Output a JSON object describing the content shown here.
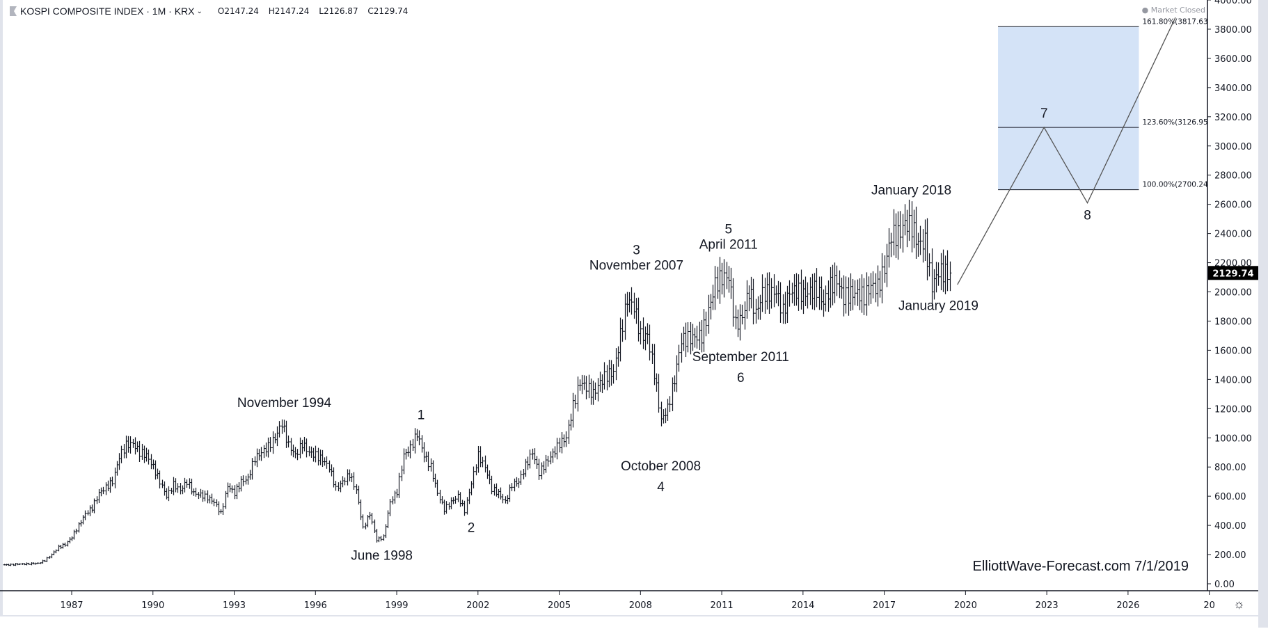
{
  "header": {
    "symbol": "KOSPI COMPOSITE INDEX · 1M · KRX",
    "open": "O2147.24",
    "high": "H2147.24",
    "low": "L2126.87",
    "close": "C2129.74"
  },
  "status": "Market Closed",
  "last_price": "2129.74",
  "watermark": "ElliottWave-Forecast.com 7/1/2019",
  "colors": {
    "bars": "#131722",
    "fib_zone": "#d4e3f7",
    "price_tag": "#000000"
  },
  "chart_data": {
    "type": "ohlc",
    "interval": "1M",
    "approx_quarterly_close": {
      "start": "1984-Q3",
      "values": [
        130,
        130,
        135,
        135,
        138,
        140,
        160,
        200,
        250,
        270,
        320,
        400,
        480,
        520,
        620,
        660,
        700,
        870,
        950,
        960,
        900,
        880,
        800,
        700,
        600,
        680,
        640,
        700,
        620,
        610,
        590,
        560,
        480,
        670,
        620,
        700,
        720,
        860,
        900,
        940,
        1000,
        1100,
        950,
        880,
        960,
        900,
        880,
        850,
        800,
        650,
        700,
        750,
        640,
        380,
        480,
        300,
        320,
        560,
        630,
        880,
        930,
        1030,
        880,
        800,
        620,
        510,
        560,
        600,
        500,
        690,
        880,
        800,
        650,
        620,
        560,
        680,
        700,
        810,
        900,
        760,
        830,
        890,
        960,
        1000,
        1220,
        1380,
        1350,
        1300,
        1380,
        1430,
        1450,
        1700,
        1950,
        1900,
        1700,
        1700,
        1450,
        1120,
        1200,
        1400,
        1670,
        1680,
        1690,
        1700,
        1870,
        2050,
        2100,
        2100,
        1770,
        1830,
        2010,
        1850,
        1990,
        1990,
        2000,
        1860,
        2000,
        2010,
        1980,
        2000,
        2020,
        1920,
        2040,
        2080,
        1960,
        1990,
        1990,
        1970,
        2040,
        2030,
        2160,
        2390,
        2390,
        2470,
        2450,
        2330,
        2340,
        2040,
        2140,
        2130
      ]
    },
    "last_bar": "2019-06",
    "ylim": [
      0,
      4000
    ],
    "y_ticks": [
      "0.00",
      "200.00",
      "400.00",
      "600.00",
      "800.00",
      "1000.00",
      "1200.00",
      "1400.00",
      "1600.00",
      "1800.00",
      "2000.00",
      "2200.00",
      "2400.00",
      "2600.00",
      "2800.00",
      "3000.00",
      "3200.00",
      "3400.00",
      "3600.00",
      "3800.00",
      "4000.00"
    ],
    "x_ticks": [
      "1987",
      "1990",
      "1993",
      "1996",
      "1999",
      "2002",
      "2005",
      "2008",
      "2011",
      "2014",
      "2017",
      "2020",
      "2023",
      "2026",
      "20"
    ],
    "annotations": [
      {
        "text": "November 1994",
        "date": 1994.85,
        "price": 1145,
        "pos": "above"
      },
      {
        "text": "June 1998",
        "date": 1998.45,
        "price": 280,
        "pos": "below"
      },
      {
        "text": "1",
        "date": 1999.9,
        "price": 1060,
        "pos": "above"
      },
      {
        "text": "2",
        "date": 2001.75,
        "price": 470,
        "pos": "below"
      },
      {
        "text": "3",
        "date": 2007.85,
        "price": 2085,
        "pos": "above2"
      },
      {
        "text": "November 2007",
        "date": 2007.85,
        "price": 2085,
        "pos": "above"
      },
      {
        "text": "October 2008",
        "date": 2008.75,
        "price": 892,
        "pos": "below"
      },
      {
        "text": "4",
        "date": 2008.75,
        "price": 892,
        "pos": "below2"
      },
      {
        "text": "5",
        "date": 2011.25,
        "price": 2230,
        "pos": "above2"
      },
      {
        "text": "April 2011",
        "date": 2011.25,
        "price": 2230,
        "pos": "above"
      },
      {
        "text": "September 2011",
        "date": 2011.7,
        "price": 1640,
        "pos": "below"
      },
      {
        "text": "6",
        "date": 2011.7,
        "price": 1640,
        "pos": "below2"
      },
      {
        "text": "January 2018",
        "date": 2018.0,
        "price": 2600,
        "pos": "above"
      },
      {
        "text": "January 2019",
        "date": 2019.0,
        "price": 1990,
        "pos": "below"
      },
      {
        "text": "7",
        "date": 2022.9,
        "price": 3126.95,
        "pos": "above"
      },
      {
        "text": "8",
        "date": 2024.5,
        "price": 2610,
        "pos": "below"
      }
    ],
    "projection_path": [
      {
        "date": 2019.7,
        "price": 2050
      },
      {
        "date": 2022.9,
        "price": 3126.95
      },
      {
        "date": 2024.5,
        "price": 2610
      },
      {
        "date": 2027.75,
        "price": 3880
      }
    ],
    "fib_zone": {
      "start": 2021.2,
      "end": 2026.4,
      "levels": [
        {
          "label": "161.80%(3817.63)",
          "price": 3817.63
        },
        {
          "label": "123.60%(3126.95)",
          "price": 3126.95
        },
        {
          "label": "100.00%(2700.24)",
          "price": 2700.24
        }
      ]
    }
  }
}
